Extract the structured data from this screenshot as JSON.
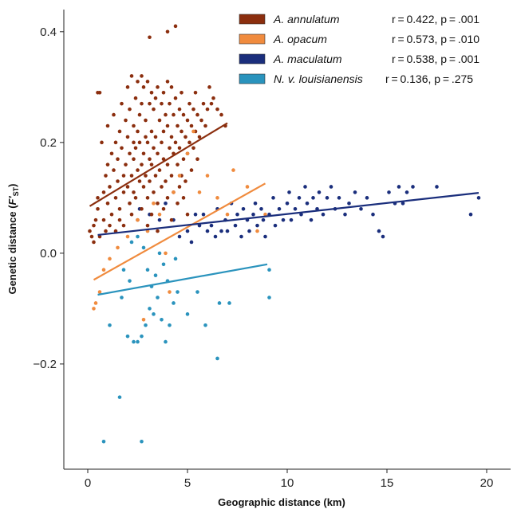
{
  "chart_data": {
    "type": "scatter",
    "xlabel": "Geographic distance (km)",
    "ylabel_main": "Genetic distance (",
    "ylabel_sym": "F'",
    "ylabel_sub": "ST",
    "ylabel_end": ")",
    "xlim": [
      -1.2,
      21.2
    ],
    "ylim": [
      -0.39,
      0.44
    ],
    "x_ticks": [
      0,
      5,
      10,
      15,
      20
    ],
    "y_ticks": [
      -0.2,
      0.0,
      0.2,
      0.4
    ],
    "x_tick_labels": [
      "0",
      "5",
      "10",
      "15",
      "20"
    ],
    "y_tick_labels": [
      "−0.2",
      "0.0",
      "0.2",
      "0.4"
    ],
    "grid": false,
    "legend_position": "top-right",
    "series": [
      {
        "name": "A. annulatum",
        "stats": "r = 0.422, p = .001",
        "color": "#8B2E0E",
        "fit": {
          "x": [
            0.1,
            7.0
          ],
          "y": [
            0.085,
            0.235
          ]
        },
        "points": [
          [
            0.1,
            0.04
          ],
          [
            0.2,
            0.03
          ],
          [
            0.3,
            0.02
          ],
          [
            0.3,
            0.05
          ],
          [
            0.4,
            0.06
          ],
          [
            0.5,
            0.08
          ],
          [
            0.5,
            0.1
          ],
          [
            0.5,
            0.29
          ],
          [
            0.6,
            0.29
          ],
          [
            0.6,
            0.03
          ],
          [
            0.7,
            0.2
          ],
          [
            0.8,
            0.11
          ],
          [
            0.8,
            0.06
          ],
          [
            0.9,
            0.14
          ],
          [
            0.9,
            0.04
          ],
          [
            1.0,
            0.23
          ],
          [
            1.0,
            0.16
          ],
          [
            1.0,
            0.09
          ],
          [
            1.1,
            0.12
          ],
          [
            1.1,
            0.05
          ],
          [
            1.2,
            0.18
          ],
          [
            1.2,
            0.07
          ],
          [
            1.3,
            0.25
          ],
          [
            1.3,
            0.15
          ],
          [
            1.4,
            0.2
          ],
          [
            1.4,
            0.1
          ],
          [
            1.4,
            0.04
          ],
          [
            1.5,
            0.17
          ],
          [
            1.5,
            0.13
          ],
          [
            1.6,
            0.22
          ],
          [
            1.6,
            0.08
          ],
          [
            1.6,
            0.06
          ],
          [
            1.7,
            0.27
          ],
          [
            1.7,
            0.19
          ],
          [
            1.8,
            0.14
          ],
          [
            1.8,
            0.11
          ],
          [
            1.8,
            0.05
          ],
          [
            1.9,
            0.24
          ],
          [
            1.9,
            0.16
          ],
          [
            2.0,
            0.3
          ],
          [
            2.0,
            0.21
          ],
          [
            2.0,
            0.12
          ],
          [
            2.1,
            0.18
          ],
          [
            2.1,
            0.09
          ],
          [
            2.1,
            0.26
          ],
          [
            2.2,
            0.32
          ],
          [
            2.2,
            0.14
          ],
          [
            2.2,
            0.07
          ],
          [
            2.3,
            0.23
          ],
          [
            2.3,
            0.17
          ],
          [
            2.3,
            0.11
          ],
          [
            2.4,
            0.28
          ],
          [
            2.4,
            0.19
          ],
          [
            2.4,
            0.1
          ],
          [
            2.5,
            0.31
          ],
          [
            2.5,
            0.22
          ],
          [
            2.5,
            0.15
          ],
          [
            2.5,
            0.06
          ],
          [
            2.6,
            0.25
          ],
          [
            2.6,
            0.13
          ],
          [
            2.6,
            0.2
          ],
          [
            2.7,
            0.32
          ],
          [
            2.7,
            0.27
          ],
          [
            2.7,
            0.16
          ],
          [
            2.7,
            0.08
          ],
          [
            2.8,
            0.3
          ],
          [
            2.8,
            0.18
          ],
          [
            2.8,
            0.12
          ],
          [
            2.9,
            0.24
          ],
          [
            2.9,
            0.14
          ],
          [
            2.9,
            0.21
          ],
          [
            3.0,
            0.31
          ],
          [
            3.0,
            0.2
          ],
          [
            3.0,
            0.1
          ],
          [
            3.0,
            0.05
          ],
          [
            3.1,
            0.27
          ],
          [
            3.1,
            0.17
          ],
          [
            3.1,
            0.13
          ],
          [
            3.2,
            0.29
          ],
          [
            3.2,
            0.22
          ],
          [
            3.2,
            0.16
          ],
          [
            3.2,
            0.07
          ],
          [
            3.3,
            0.26
          ],
          [
            3.3,
            0.19
          ],
          [
            3.3,
            0.11
          ],
          [
            3.4,
            0.28
          ],
          [
            3.4,
            0.14
          ],
          [
            3.4,
            0.21
          ],
          [
            3.5,
            0.3
          ],
          [
            3.5,
            0.18
          ],
          [
            3.5,
            0.09
          ],
          [
            3.5,
            0.04
          ],
          [
            3.6,
            0.24
          ],
          [
            3.6,
            0.15
          ],
          [
            3.7,
            0.27
          ],
          [
            3.7,
            0.2
          ],
          [
            3.7,
            0.12
          ],
          [
            3.8,
            0.29
          ],
          [
            3.8,
            0.22
          ],
          [
            3.8,
            0.17
          ],
          [
            3.8,
            0.08
          ],
          [
            3.9,
            0.25
          ],
          [
            3.9,
            0.13
          ],
          [
            4.0,
            0.31
          ],
          [
            4.0,
            0.23
          ],
          [
            4.0,
            0.16
          ],
          [
            4.0,
            0.1
          ],
          [
            4.0,
            0.4
          ],
          [
            4.1,
            0.27
          ],
          [
            4.1,
            0.19
          ],
          [
            4.2,
            0.3
          ],
          [
            4.2,
            0.21
          ],
          [
            4.2,
            0.14
          ],
          [
            4.2,
            0.06
          ],
          [
            4.3,
            0.25
          ],
          [
            4.3,
            0.18
          ],
          [
            4.3,
            0.11
          ],
          [
            4.4,
            0.28
          ],
          [
            4.4,
            0.2
          ],
          [
            4.4,
            0.41
          ],
          [
            4.5,
            0.23
          ],
          [
            4.5,
            0.16
          ],
          [
            4.5,
            0.09
          ],
          [
            4.6,
            0.26
          ],
          [
            4.6,
            0.19
          ],
          [
            4.6,
            0.12
          ],
          [
            4.7,
            0.29
          ],
          [
            4.7,
            0.22
          ],
          [
            4.7,
            0.14
          ],
          [
            4.8,
            0.25
          ],
          [
            4.8,
            0.17
          ],
          [
            4.8,
            0.1
          ],
          [
            4.9,
            0.21
          ],
          [
            4.9,
            0.13
          ],
          [
            5.0,
            0.24
          ],
          [
            5.0,
            0.18
          ],
          [
            5.0,
            0.07
          ],
          [
            5.1,
            0.27
          ],
          [
            5.1,
            0.2
          ],
          [
            5.2,
            0.23
          ],
          [
            5.2,
            0.15
          ],
          [
            5.3,
            0.26
          ],
          [
            5.3,
            0.19
          ],
          [
            5.4,
            0.29
          ],
          [
            5.4,
            0.22
          ],
          [
            5.5,
            0.25
          ],
          [
            5.5,
            0.17
          ],
          [
            5.6,
            0.21
          ],
          [
            5.7,
            0.24
          ],
          [
            5.8,
            0.27
          ],
          [
            5.9,
            0.23
          ],
          [
            6.0,
            0.26
          ],
          [
            6.1,
            0.3
          ],
          [
            6.2,
            0.27
          ],
          [
            6.3,
            0.28
          ],
          [
            6.5,
            0.26
          ],
          [
            6.7,
            0.25
          ],
          [
            6.9,
            0.23
          ],
          [
            3.1,
            0.39
          ],
          [
            2.3,
            0.2
          ]
        ]
      },
      {
        "name": "A. opacum",
        "stats": "r = 0.573, p = .010",
        "color": "#F08B3E",
        "fit": {
          "x": [
            0.3,
            8.9
          ],
          "y": [
            -0.048,
            0.126
          ]
        },
        "points": [
          [
            0.3,
            -0.1
          ],
          [
            0.4,
            -0.09
          ],
          [
            0.6,
            -0.07
          ],
          [
            0.8,
            -0.03
          ],
          [
            1.1,
            -0.01
          ],
          [
            1.5,
            0.01
          ],
          [
            2.0,
            0.03
          ],
          [
            2.5,
            0.06
          ],
          [
            2.8,
            -0.12
          ],
          [
            3.0,
            0.04
          ],
          [
            3.3,
            0.09
          ],
          [
            3.6,
            0.07
          ],
          [
            3.9,
            0.0
          ],
          [
            4.1,
            -0.07
          ],
          [
            4.3,
            0.11
          ],
          [
            4.6,
            0.14
          ],
          [
            5.0,
            0.18
          ],
          [
            5.3,
            0.22
          ],
          [
            5.6,
            0.11
          ],
          [
            6.0,
            0.14
          ],
          [
            6.5,
            0.1
          ],
          [
            7.0,
            0.07
          ],
          [
            7.3,
            0.15
          ],
          [
            8.0,
            0.12
          ],
          [
            8.5,
            0.04
          ],
          [
            8.9,
            0.07
          ]
        ]
      },
      {
        "name": "A. maculatum",
        "stats": "r = 0.538, p = .001",
        "color": "#1A2E7C",
        "fit": {
          "x": [
            0.5,
            19.6
          ],
          "y": [
            0.033,
            0.109
          ]
        },
        "points": [
          [
            2.6,
            0.08
          ],
          [
            3.1,
            0.07
          ],
          [
            3.6,
            0.06
          ],
          [
            3.9,
            0.09
          ],
          [
            4.3,
            0.06
          ],
          [
            4.6,
            0.03
          ],
          [
            5.0,
            0.04
          ],
          [
            5.2,
            0.02
          ],
          [
            5.4,
            0.07
          ],
          [
            5.6,
            0.05
          ],
          [
            5.8,
            0.07
          ],
          [
            6.0,
            0.04
          ],
          [
            6.2,
            0.05
          ],
          [
            6.4,
            0.03
          ],
          [
            6.5,
            0.08
          ],
          [
            6.7,
            0.04
          ],
          [
            6.9,
            0.06
          ],
          [
            7.0,
            0.04
          ],
          [
            7.2,
            0.09
          ],
          [
            7.4,
            0.05
          ],
          [
            7.5,
            0.07
          ],
          [
            7.7,
            0.03
          ],
          [
            7.8,
            0.08
          ],
          [
            8.0,
            0.06
          ],
          [
            8.1,
            0.04
          ],
          [
            8.3,
            0.07
          ],
          [
            8.4,
            0.09
          ],
          [
            8.5,
            0.05
          ],
          [
            8.7,
            0.08
          ],
          [
            8.8,
            0.06
          ],
          [
            8.9,
            0.03
          ],
          [
            9.1,
            0.07
          ],
          [
            9.3,
            0.1
          ],
          [
            9.4,
            0.05
          ],
          [
            9.6,
            0.08
          ],
          [
            9.8,
            0.06
          ],
          [
            10.0,
            0.09
          ],
          [
            10.1,
            0.11
          ],
          [
            10.2,
            0.06
          ],
          [
            10.4,
            0.08
          ],
          [
            10.6,
            0.1
          ],
          [
            10.7,
            0.07
          ],
          [
            10.9,
            0.12
          ],
          [
            11.0,
            0.09
          ],
          [
            11.2,
            0.06
          ],
          [
            11.3,
            0.1
          ],
          [
            11.5,
            0.08
          ],
          [
            11.6,
            0.11
          ],
          [
            11.8,
            0.07
          ],
          [
            12.0,
            0.1
          ],
          [
            12.2,
            0.12
          ],
          [
            12.4,
            0.08
          ],
          [
            12.6,
            0.1
          ],
          [
            12.9,
            0.07
          ],
          [
            13.1,
            0.09
          ],
          [
            13.4,
            0.11
          ],
          [
            13.7,
            0.08
          ],
          [
            14.0,
            0.1
          ],
          [
            14.3,
            0.07
          ],
          [
            14.6,
            0.04
          ],
          [
            14.8,
            0.03
          ],
          [
            15.1,
            0.11
          ],
          [
            15.4,
            0.09
          ],
          [
            15.6,
            0.12
          ],
          [
            16.0,
            0.11
          ],
          [
            16.3,
            0.12
          ],
          [
            17.5,
            0.12
          ],
          [
            19.2,
            0.07
          ],
          [
            19.6,
            0.1
          ],
          [
            15.8,
            0.09
          ]
        ]
      },
      {
        "name": "N. v. louisianensis",
        "stats": "r = 0.136, p = .275",
        "color": "#2A93BD",
        "fit": {
          "x": [
            0.5,
            9.0
          ],
          "y": [
            -0.075,
            -0.02
          ]
        },
        "points": [
          [
            0.8,
            -0.34
          ],
          [
            1.6,
            -0.26
          ],
          [
            2.7,
            -0.34
          ],
          [
            1.1,
            -0.13
          ],
          [
            1.7,
            -0.08
          ],
          [
            2.0,
            -0.15
          ],
          [
            2.3,
            -0.16
          ],
          [
            2.5,
            -0.16
          ],
          [
            2.7,
            -0.15
          ],
          [
            2.9,
            -0.13
          ],
          [
            3.1,
            -0.1
          ],
          [
            3.3,
            -0.11
          ],
          [
            3.5,
            -0.08
          ],
          [
            3.7,
            -0.12
          ],
          [
            3.9,
            -0.16
          ],
          [
            4.1,
            -0.13
          ],
          [
            4.3,
            -0.09
          ],
          [
            4.5,
            -0.07
          ],
          [
            5.0,
            -0.11
          ],
          [
            5.5,
            -0.07
          ],
          [
            5.9,
            -0.13
          ],
          [
            6.5,
            -0.19
          ],
          [
            6.6,
            -0.09
          ],
          [
            7.1,
            -0.09
          ],
          [
            9.1,
            -0.08
          ],
          [
            9.1,
            -0.03
          ],
          [
            2.2,
            0.02
          ],
          [
            2.5,
            0.03
          ],
          [
            2.8,
            0.01
          ],
          [
            3.0,
            -0.03
          ],
          [
            3.4,
            -0.04
          ],
          [
            3.8,
            -0.02
          ],
          [
            4.0,
            -0.05
          ],
          [
            4.4,
            -0.01
          ],
          [
            2.1,
            -0.05
          ],
          [
            1.8,
            -0.03
          ],
          [
            3.6,
            0.0
          ],
          [
            3.2,
            -0.06
          ]
        ]
      }
    ]
  }
}
